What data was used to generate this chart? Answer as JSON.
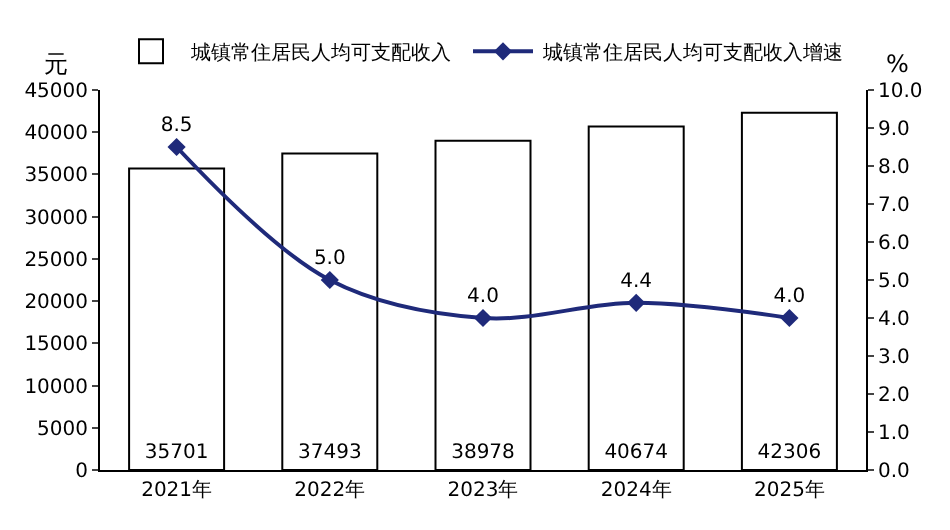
{
  "chart_data": {
    "type": "bar",
    "categories": [
      "2021年",
      "2022年",
      "2023年",
      "2024年",
      "2025年"
    ],
    "series": [
      {
        "name": "城镇常住居民人均可支配收入",
        "color": "#ffffff",
        "values": [
          35701,
          37493,
          38978,
          40674,
          42306
        ],
        "value_labels": [
          "35701",
          "37493",
          "38978",
          "40674",
          "42306"
        ]
      },
      {
        "name": "城镇常住居民人均可支配收入增速",
        "type": "line",
        "axis": "y2",
        "color": "#1f2a7a",
        "values": [
          8.5,
          5.0,
          4.0,
          4.4,
          4.0
        ],
        "value_labels": [
          "8.5",
          "5.0",
          "4.0",
          "4.4",
          "4.0"
        ]
      }
    ],
    "ylabel": "元",
    "y2label": "%",
    "ylim": [
      0,
      45000
    ],
    "yticks": [
      0,
      5000,
      10000,
      15000,
      20000,
      25000,
      30000,
      35000,
      40000,
      45000
    ],
    "y2lim": [
      0,
      10
    ],
    "y2ticks": [
      {
        "value": 0,
        "label": "0.0"
      },
      {
        "value": 1,
        "label": "1.0"
      },
      {
        "value": 2,
        "label": "2.0"
      },
      {
        "value": 3,
        "label": "3.0"
      },
      {
        "value": 4,
        "label": "4.0"
      },
      {
        "value": 5,
        "label": "5.0"
      },
      {
        "value": 6,
        "label": "6.0"
      },
      {
        "value": 7,
        "label": "7.0"
      },
      {
        "value": 8,
        "label": "8.0"
      },
      {
        "value": 9,
        "label": "9.0"
      },
      {
        "value": 10,
        "label": "10.0"
      }
    ],
    "marker": "diamond",
    "line_style": "solid",
    "grid": false,
    "legend": "top"
  }
}
